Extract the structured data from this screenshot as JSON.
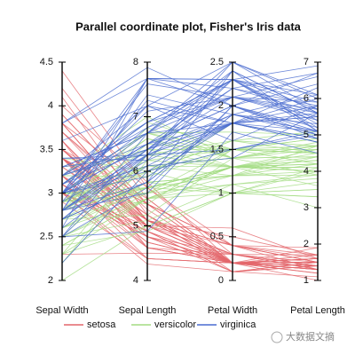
{
  "chart_data": {
    "type": "parallel",
    "title": "Parallel coordinate plot, Fisher's Iris data",
    "axes": [
      {
        "name": "Sepal Width",
        "ylim": [
          2,
          4.5
        ],
        "yticks": [
          2,
          2.5,
          3,
          3.5,
          4,
          4.5
        ]
      },
      {
        "name": "Sepal Length",
        "ylim": [
          4,
          8
        ],
        "yticks": [
          4,
          5,
          6,
          7,
          8
        ]
      },
      {
        "name": "Petal Width",
        "ylim": [
          0,
          2.5
        ],
        "yticks": [
          0,
          0.5,
          1,
          1.5,
          2,
          2.5
        ]
      },
      {
        "name": "Petal Length",
        "ylim": [
          1,
          7
        ],
        "yticks": [
          1,
          2,
          3,
          4,
          5,
          6,
          7
        ]
      }
    ],
    "series": [
      {
        "name": "setosa",
        "color": "#e4666c",
        "values": [
          [
            3.5,
            5.1,
            0.2,
            1.4
          ],
          [
            3.0,
            4.9,
            0.2,
            1.4
          ],
          [
            3.2,
            4.7,
            0.2,
            1.3
          ],
          [
            3.1,
            4.6,
            0.2,
            1.5
          ],
          [
            3.6,
            5.0,
            0.2,
            1.4
          ],
          [
            3.9,
            5.4,
            0.4,
            1.7
          ],
          [
            3.4,
            4.6,
            0.3,
            1.4
          ],
          [
            3.4,
            5.0,
            0.2,
            1.5
          ],
          [
            2.9,
            4.4,
            0.2,
            1.4
          ],
          [
            3.1,
            4.9,
            0.1,
            1.5
          ],
          [
            3.7,
            5.4,
            0.2,
            1.5
          ],
          [
            3.4,
            4.8,
            0.2,
            1.6
          ],
          [
            3.0,
            4.8,
            0.1,
            1.4
          ],
          [
            3.0,
            4.3,
            0.1,
            1.1
          ],
          [
            4.0,
            5.8,
            0.2,
            1.2
          ],
          [
            4.4,
            5.7,
            0.4,
            1.5
          ],
          [
            3.9,
            5.4,
            0.4,
            1.3
          ],
          [
            3.5,
            5.1,
            0.3,
            1.4
          ],
          [
            3.8,
            5.7,
            0.3,
            1.7
          ],
          [
            3.8,
            5.1,
            0.3,
            1.5
          ],
          [
            3.4,
            5.4,
            0.2,
            1.7
          ],
          [
            3.7,
            5.1,
            0.4,
            1.5
          ],
          [
            3.6,
            4.6,
            0.2,
            1.0
          ],
          [
            3.3,
            5.1,
            0.5,
            1.7
          ],
          [
            3.4,
            4.8,
            0.2,
            1.9
          ],
          [
            3.0,
            5.0,
            0.2,
            1.6
          ],
          [
            3.4,
            5.0,
            0.4,
            1.6
          ],
          [
            3.5,
            5.2,
            0.2,
            1.5
          ],
          [
            3.4,
            5.2,
            0.2,
            1.4
          ],
          [
            3.2,
            4.7,
            0.2,
            1.6
          ],
          [
            3.1,
            4.8,
            0.2,
            1.6
          ],
          [
            3.4,
            5.4,
            0.4,
            1.5
          ],
          [
            4.1,
            5.2,
            0.1,
            1.5
          ],
          [
            4.2,
            5.5,
            0.2,
            1.4
          ],
          [
            3.1,
            4.9,
            0.2,
            1.5
          ],
          [
            3.2,
            5.0,
            0.2,
            1.2
          ],
          [
            3.5,
            5.5,
            0.2,
            1.3
          ],
          [
            3.6,
            4.9,
            0.1,
            1.4
          ],
          [
            3.0,
            4.4,
            0.2,
            1.3
          ],
          [
            3.4,
            5.1,
            0.2,
            1.5
          ],
          [
            3.5,
            5.0,
            0.3,
            1.3
          ],
          [
            2.3,
            4.5,
            0.3,
            1.3
          ],
          [
            3.2,
            4.4,
            0.2,
            1.3
          ],
          [
            3.5,
            5.0,
            0.6,
            1.6
          ],
          [
            3.8,
            5.1,
            0.4,
            1.9
          ],
          [
            3.0,
            4.8,
            0.3,
            1.4
          ],
          [
            3.8,
            5.1,
            0.2,
            1.6
          ],
          [
            3.2,
            4.6,
            0.2,
            1.4
          ],
          [
            3.7,
            5.3,
            0.2,
            1.5
          ],
          [
            3.3,
            5.0,
            0.2,
            1.4
          ]
        ]
      },
      {
        "name": "versicolor",
        "color": "#a3dc82",
        "values": [
          [
            3.2,
            7.0,
            1.4,
            4.7
          ],
          [
            3.2,
            6.4,
            1.5,
            4.5
          ],
          [
            3.1,
            6.9,
            1.5,
            4.9
          ],
          [
            2.3,
            5.5,
            1.3,
            4.0
          ],
          [
            2.8,
            6.5,
            1.5,
            4.6
          ],
          [
            2.8,
            5.7,
            1.3,
            4.5
          ],
          [
            3.3,
            6.3,
            1.6,
            4.7
          ],
          [
            2.4,
            4.9,
            1.0,
            3.3
          ],
          [
            2.9,
            6.6,
            1.3,
            4.6
          ],
          [
            2.7,
            5.2,
            1.4,
            3.9
          ],
          [
            2.0,
            5.0,
            1.0,
            3.5
          ],
          [
            3.0,
            5.9,
            1.5,
            4.2
          ],
          [
            2.2,
            6.0,
            1.0,
            4.0
          ],
          [
            2.9,
            6.1,
            1.4,
            4.7
          ],
          [
            2.9,
            5.6,
            1.3,
            3.6
          ],
          [
            3.1,
            6.7,
            1.4,
            4.4
          ],
          [
            3.0,
            5.6,
            1.5,
            4.5
          ],
          [
            2.7,
            5.8,
            1.0,
            4.1
          ],
          [
            2.2,
            6.2,
            1.5,
            4.5
          ],
          [
            2.5,
            5.6,
            1.1,
            3.9
          ],
          [
            3.2,
            5.9,
            1.8,
            4.8
          ],
          [
            2.8,
            6.1,
            1.3,
            4.0
          ],
          [
            2.5,
            6.3,
            1.5,
            4.9
          ],
          [
            2.8,
            6.1,
            1.2,
            4.7
          ],
          [
            2.9,
            6.4,
            1.3,
            4.3
          ],
          [
            3.0,
            6.6,
            1.4,
            4.4
          ],
          [
            2.8,
            6.8,
            1.4,
            4.8
          ],
          [
            3.0,
            6.7,
            1.7,
            5.0
          ],
          [
            2.9,
            6.0,
            1.5,
            4.5
          ],
          [
            2.6,
            5.7,
            1.0,
            3.5
          ],
          [
            2.4,
            5.5,
            1.1,
            3.8
          ],
          [
            2.4,
            5.5,
            1.0,
            3.7
          ],
          [
            2.7,
            5.8,
            1.2,
            3.9
          ],
          [
            2.7,
            6.0,
            1.6,
            5.1
          ],
          [
            3.0,
            5.4,
            1.5,
            4.5
          ],
          [
            3.4,
            6.0,
            1.6,
            4.5
          ],
          [
            3.1,
            6.7,
            1.5,
            4.7
          ],
          [
            2.3,
            6.3,
            1.3,
            4.4
          ],
          [
            3.0,
            5.6,
            1.3,
            4.1
          ],
          [
            2.5,
            5.5,
            1.3,
            4.0
          ],
          [
            2.6,
            5.5,
            1.2,
            4.4
          ],
          [
            3.0,
            6.1,
            1.4,
            4.6
          ],
          [
            2.6,
            5.8,
            1.2,
            4.0
          ],
          [
            2.3,
            5.0,
            1.0,
            3.3
          ],
          [
            2.7,
            5.6,
            1.3,
            4.2
          ],
          [
            3.0,
            5.7,
            1.2,
            4.2
          ],
          [
            2.9,
            5.7,
            1.3,
            4.2
          ],
          [
            2.9,
            6.2,
            1.3,
            4.3
          ],
          [
            2.5,
            5.1,
            1.1,
            3.0
          ],
          [
            2.8,
            5.7,
            1.3,
            4.1
          ]
        ]
      },
      {
        "name": "virginica",
        "color": "#4a6bd0",
        "values": [
          [
            3.3,
            6.3,
            2.5,
            6.0
          ],
          [
            2.7,
            5.8,
            1.9,
            5.1
          ],
          [
            3.0,
            7.1,
            2.1,
            5.9
          ],
          [
            2.9,
            6.3,
            1.8,
            5.6
          ],
          [
            3.0,
            6.5,
            2.2,
            5.8
          ],
          [
            3.0,
            7.6,
            2.1,
            6.6
          ],
          [
            2.5,
            4.9,
            1.7,
            4.5
          ],
          [
            2.9,
            7.3,
            1.8,
            6.3
          ],
          [
            2.5,
            6.7,
            1.8,
            5.8
          ],
          [
            3.6,
            7.2,
            2.5,
            6.1
          ],
          [
            3.2,
            6.5,
            2.0,
            5.1
          ],
          [
            2.7,
            6.4,
            1.9,
            5.3
          ],
          [
            3.0,
            6.8,
            2.1,
            5.5
          ],
          [
            2.5,
            5.7,
            2.0,
            5.0
          ],
          [
            2.8,
            5.8,
            2.4,
            5.1
          ],
          [
            3.2,
            6.4,
            2.3,
            5.3
          ],
          [
            3.0,
            6.5,
            1.8,
            5.5
          ],
          [
            3.8,
            7.7,
            2.2,
            6.7
          ],
          [
            2.6,
            7.7,
            2.3,
            6.9
          ],
          [
            2.2,
            6.0,
            1.5,
            5.0
          ],
          [
            3.2,
            6.9,
            2.3,
            5.7
          ],
          [
            2.8,
            5.6,
            2.0,
            4.9
          ],
          [
            2.8,
            7.7,
            2.0,
            6.7
          ],
          [
            2.7,
            6.3,
            1.8,
            4.9
          ],
          [
            3.3,
            6.7,
            2.1,
            5.7
          ],
          [
            3.2,
            7.2,
            1.8,
            6.0
          ],
          [
            2.8,
            6.2,
            1.8,
            4.8
          ],
          [
            3.0,
            6.1,
            1.8,
            4.9
          ],
          [
            2.8,
            6.4,
            2.1,
            5.6
          ],
          [
            3.0,
            7.2,
            1.6,
            5.8
          ],
          [
            2.8,
            7.4,
            1.9,
            6.1
          ],
          [
            3.8,
            7.9,
            2.0,
            6.4
          ],
          [
            2.8,
            6.4,
            2.2,
            5.6
          ],
          [
            2.8,
            6.3,
            1.5,
            5.1
          ],
          [
            2.6,
            6.1,
            1.4,
            5.6
          ],
          [
            3.0,
            7.7,
            2.3,
            6.1
          ],
          [
            3.4,
            6.3,
            2.4,
            5.6
          ],
          [
            3.1,
            6.4,
            1.8,
            5.5
          ],
          [
            3.0,
            6.0,
            1.8,
            4.8
          ],
          [
            3.1,
            6.9,
            2.1,
            5.4
          ],
          [
            3.1,
            6.7,
            2.4,
            5.6
          ],
          [
            3.1,
            6.9,
            2.3,
            5.1
          ],
          [
            2.7,
            5.8,
            1.9,
            5.1
          ],
          [
            3.2,
            6.8,
            2.3,
            5.9
          ],
          [
            3.3,
            6.7,
            2.5,
            5.7
          ],
          [
            3.0,
            6.7,
            2.3,
            5.2
          ],
          [
            2.5,
            6.3,
            1.9,
            5.0
          ],
          [
            3.0,
            6.5,
            2.0,
            5.2
          ],
          [
            3.4,
            6.2,
            2.3,
            5.4
          ],
          [
            3.0,
            5.9,
            1.8,
            5.1
          ]
        ]
      }
    ],
    "watermark": "大数据文摘"
  }
}
